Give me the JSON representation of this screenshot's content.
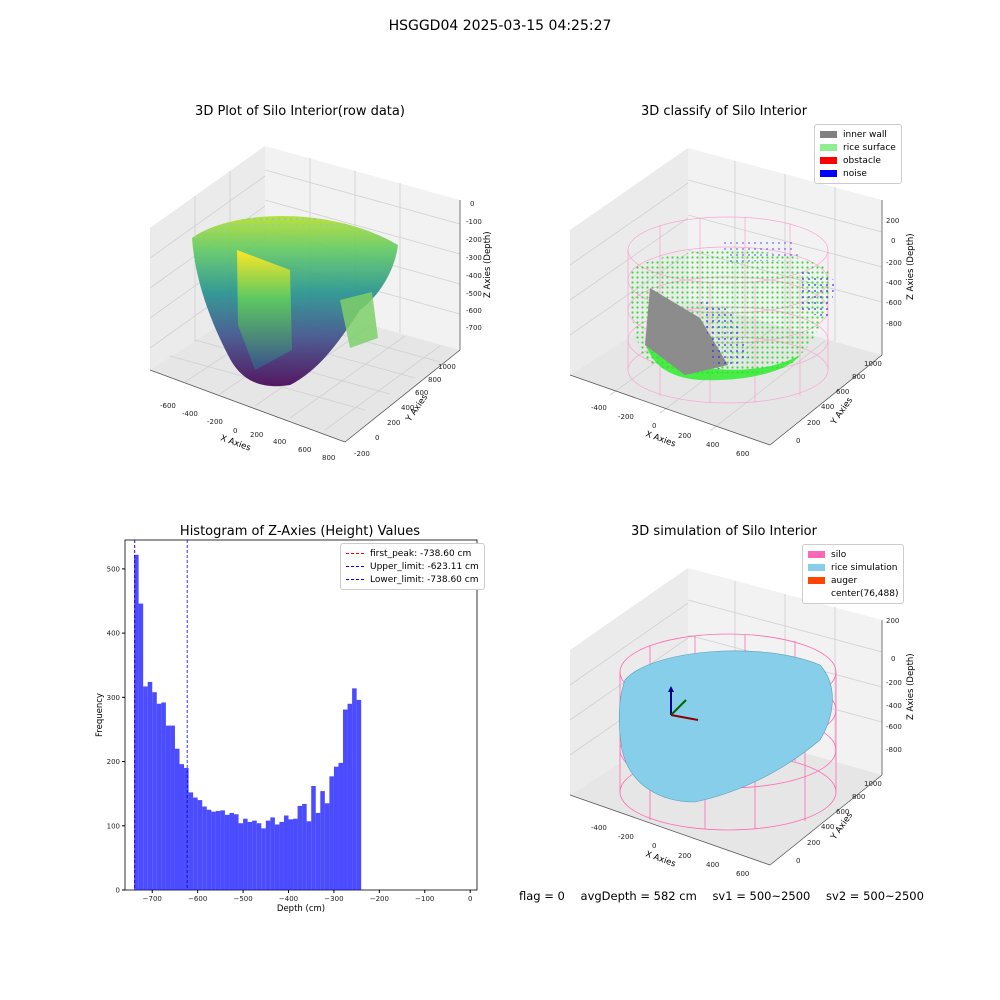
{
  "figure_title": "HSGGD04 2025-03-15 04:25:27",
  "panels": {
    "raw": {
      "title": "3D Plot of Silo Interior(row data)",
      "xlabel": "X Axies",
      "ylabel": "Y Axies",
      "zlabel": "Z Axies (Depth)",
      "xticks": [
        "-600",
        "-400",
        "-200",
        "0",
        "200",
        "400",
        "600",
        "800"
      ],
      "yticks": [
        "-200",
        "0",
        "200",
        "400",
        "600",
        "800",
        "1000"
      ],
      "zticks": [
        "0",
        "-100",
        "-200",
        "-300",
        "-400",
        "-500",
        "-600",
        "-700"
      ]
    },
    "classify": {
      "title": "3D classify of Silo Interior",
      "xlabel": "X Axies",
      "ylabel": "Y Axies",
      "zlabel": "Z Axies (Depth)",
      "xticks": [
        "-400",
        "-200",
        "0",
        "200",
        "400",
        "600"
      ],
      "yticks": [
        "0",
        "200",
        "400",
        "600",
        "800",
        "1000"
      ],
      "zticks": [
        "200",
        "0",
        "-200",
        "-400",
        "-600",
        "-800"
      ],
      "legend": [
        {
          "label": "inner wall",
          "color": "#808080"
        },
        {
          "label": "rice surface",
          "color": "#90ee90"
        },
        {
          "label": "obstacle",
          "color": "#ff0000"
        },
        {
          "label": "noise",
          "color": "#0000ff"
        }
      ]
    },
    "simulation": {
      "title": "3D simulation of Silo Interior",
      "xlabel": "X Axies",
      "ylabel": "Y Axies",
      "zlabel": "Z Axies (Depth)",
      "xticks": [
        "-400",
        "-200",
        "0",
        "200",
        "400",
        "600"
      ],
      "yticks": [
        "0",
        "200",
        "400",
        "600",
        "800",
        "1000"
      ],
      "zticks": [
        "200",
        "0",
        "-200",
        "-400",
        "-600",
        "-800"
      ],
      "legend": [
        {
          "label": "silo",
          "color": "#ff69b4"
        },
        {
          "label": "rice simulation",
          "color": "#87ceeb"
        },
        {
          "label": "auger",
          "color": "#ff4500"
        },
        {
          "label": "center(76,488)",
          "color": ""
        }
      ]
    }
  },
  "chart_data": [
    {
      "type": "bar",
      "title": "Histogram of Z-Axies (Height) Values",
      "xlabel": "Depth (cm)",
      "ylabel": "Frequency",
      "xlim": [
        -760,
        15
      ],
      "ylim": [
        0,
        545
      ],
      "xticks": [
        -700,
        -600,
        -500,
        -400,
        -300,
        -200,
        -100,
        0
      ],
      "yticks": [
        0,
        100,
        200,
        300,
        400,
        500
      ],
      "bin_start": -740,
      "bin_width": 10,
      "color": "#0000ff",
      "values": [
        522,
        446,
        317,
        324,
        308,
        290,
        292,
        256,
        256,
        220,
        196,
        190,
        152,
        144,
        140,
        130,
        125,
        122,
        123,
        124,
        117,
        120,
        118,
        104,
        111,
        106,
        108,
        104,
        96,
        108,
        113,
        102,
        106,
        116,
        110,
        111,
        131,
        134,
        107,
        162,
        120,
        154,
        135,
        177,
        192,
        198,
        281,
        290,
        314,
        296
      ],
      "lines": [
        {
          "label": "first_peak: -738.60 cm",
          "x": -738.6,
          "color": "#ff0000"
        },
        {
          "label": "Upper_limit: -623.11 cm",
          "x": -623.11,
          "color": "#0000ff"
        },
        {
          "label": "Lower_limit: -738.60 cm",
          "x": -738.6,
          "color": "#0000ff"
        }
      ]
    }
  ],
  "footer": {
    "flag": "flag = 0",
    "avg_depth": "avgDepth = 582 cm",
    "sv1": "sv1 = 500~2500",
    "sv2": "sv2 = 500~2500"
  }
}
